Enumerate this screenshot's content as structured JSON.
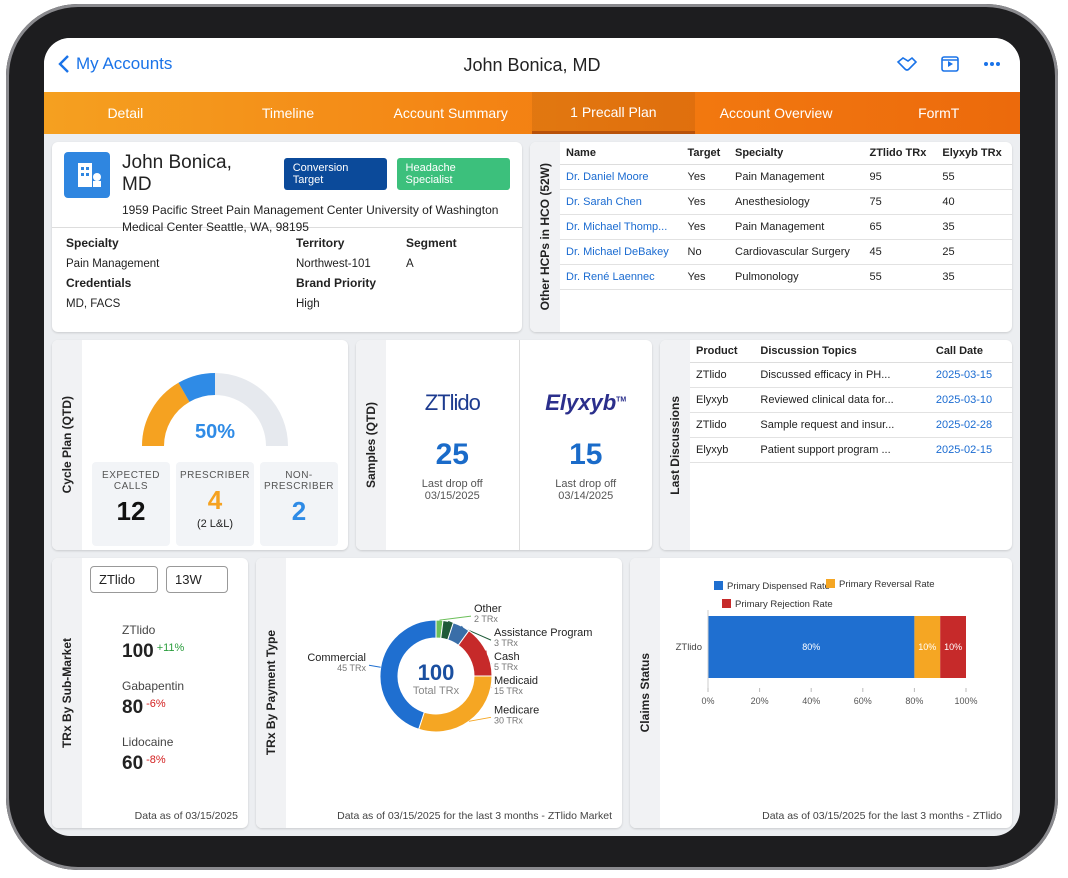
{
  "nav": {
    "back": "My Accounts",
    "title": "John Bonica, MD"
  },
  "tabs": {
    "items": [
      "Detail",
      "Timeline",
      "Account Summary",
      "1 Precall Plan",
      "Account Overview",
      "FormT"
    ],
    "active": 3
  },
  "profile": {
    "name": "John Bonica, MD",
    "badges": [
      {
        "text": "Conversion Target",
        "color": "#0b4a9a"
      },
      {
        "text": "Headache Specialist",
        "color": "#3cc07c"
      }
    ],
    "address": "1959 Pacific Street Pain Management Center University of Washington Medical Center Seattle, WA, 98195",
    "fields": [
      {
        "label": "Specialty",
        "value": "Pain Management"
      },
      {
        "label": "Territory",
        "value": "Northwest-101"
      },
      {
        "label": "Segment",
        "value": "A"
      },
      {
        "label": "Credentials",
        "value": "MD, FACS"
      },
      {
        "label": "Brand Priority",
        "value": "High"
      }
    ]
  },
  "hcps": {
    "title": "Other HCPs in HCO (52W)",
    "columns": [
      "Name",
      "Target",
      "Specialty",
      "ZTlido TRx",
      "Elyxyb TRx"
    ],
    "rows": [
      [
        "Dr. Daniel Moore",
        "Yes",
        "Pain Management",
        95,
        55
      ],
      [
        "Dr. Sarah Chen",
        "Yes",
        "Anesthesiology",
        75,
        40
      ],
      [
        "Dr. Michael Thomp...",
        "Yes",
        "Pain Management",
        65,
        35
      ],
      [
        "Dr. Michael DeBakey",
        "No",
        "Cardiovascular Surgery",
        45,
        25
      ],
      [
        "Dr. René Laennec",
        "Yes",
        "Pulmonology",
        55,
        35
      ]
    ]
  },
  "cycle_plan": {
    "title": "Cycle Plan (QTD)",
    "percent_label": "50%",
    "track_color": "#e6e9ee",
    "stats": [
      {
        "label": "EXPECTED CALLS",
        "value": 12
      },
      {
        "label": "PRESCRIBER",
        "value": 4,
        "note": "(2 L&L)",
        "color": "#f5a221"
      },
      {
        "label": "NON-PRESCRIBER",
        "value": 2,
        "color": "#2f8be6"
      }
    ]
  },
  "samples": {
    "title": "Samples (QTD)",
    "items": [
      {
        "brand": "ZTlido",
        "count": 25,
        "caption": "Last drop off",
        "date": "03/15/2025",
        "color": "#1d3b8f"
      },
      {
        "brand": "Elyxyb",
        "trademark": "TM",
        "count": 15,
        "caption": "Last drop off",
        "date": "03/14/2025",
        "color": "#2b2f8c"
      }
    ]
  },
  "discussions": {
    "title": "Last Discussions",
    "columns": [
      "Product",
      "Discussion Topics",
      "Call Date"
    ],
    "rows": [
      [
        "ZTlido",
        "Discussed efficacy in PH...",
        "2025-03-15"
      ],
      [
        "Elyxyb",
        "Reviewed clinical data for...",
        "2025-03-10"
      ],
      [
        "ZTlido",
        "Sample request and insur...",
        "2025-02-28"
      ],
      [
        "Elyxyb",
        "Patient support program ...",
        "2025-02-15"
      ]
    ]
  },
  "sub_market": {
    "title": "TRx By Sub-Market",
    "filters": [
      "ZTlido",
      "13W"
    ],
    "items": [
      {
        "name": "ZTlido",
        "value": 100,
        "change": {
          "value": 11,
          "label": "+11%"
        }
      },
      {
        "name": "Gabapentin",
        "value": 80,
        "change": {
          "value": -6,
          "label": "-6%"
        }
      },
      {
        "name": "Lidocaine",
        "value": 60,
        "change": {
          "value": -8,
          "label": "-8%"
        }
      }
    ],
    "footnote": "Data as of 03/15/2025"
  },
  "payment": {
    "type": "pie",
    "title": "TRx By Payment Type",
    "total": 100,
    "total_label": "Total TRx",
    "segments": [
      {
        "name": "Other",
        "value": 2,
        "value_label": "2 TRx",
        "color": "#6cbf5a"
      },
      {
        "name": "Assistance Program",
        "value": 3,
        "value_label": "3 TRx",
        "color": "#1f5a38"
      },
      {
        "name": "Cash",
        "value": 5,
        "value_label": "5 TRx",
        "color": "#3a6ea8"
      },
      {
        "name": "Medicaid",
        "value": 15,
        "value_label": "15 TRx",
        "color": "#c62a2a"
      },
      {
        "name": "Medicare",
        "value": 30,
        "value_label": "30 TRx",
        "color": "#f5a623"
      },
      {
        "name": "Commercial",
        "value": 45,
        "value_label": "45 TRx",
        "color": "#1f6fd0"
      }
    ],
    "footnote": "Data as of 03/15/2025 for the last 3 months - ZTlido Market"
  },
  "claims": {
    "type": "bar",
    "title": "Claims Status",
    "category": "ZTlido",
    "series": [
      {
        "name": "Primary Dispensed Rate",
        "color": "#1f6fd0",
        "value": 80,
        "value_label": "80%"
      },
      {
        "name": "Primary Reversal Rate",
        "color": "#f5a623",
        "value": 10,
        "value_label": "10%"
      },
      {
        "name": "Primary Rejection Rate",
        "color": "#c62a2a",
        "value": 10,
        "value_label": "10%"
      }
    ],
    "xlim": [
      0,
      100
    ],
    "xticks": [
      {
        "value": 0,
        "label": "0%"
      },
      {
        "value": 20,
        "label": "20%"
      },
      {
        "value": 40,
        "label": "40%"
      },
      {
        "value": 60,
        "label": "60%"
      },
      {
        "value": 80,
        "label": "80%"
      },
      {
        "value": 100,
        "label": "100%"
      }
    ],
    "footnote": "Data as of 03/15/2025 for the last 3 months - ZTlido"
  }
}
